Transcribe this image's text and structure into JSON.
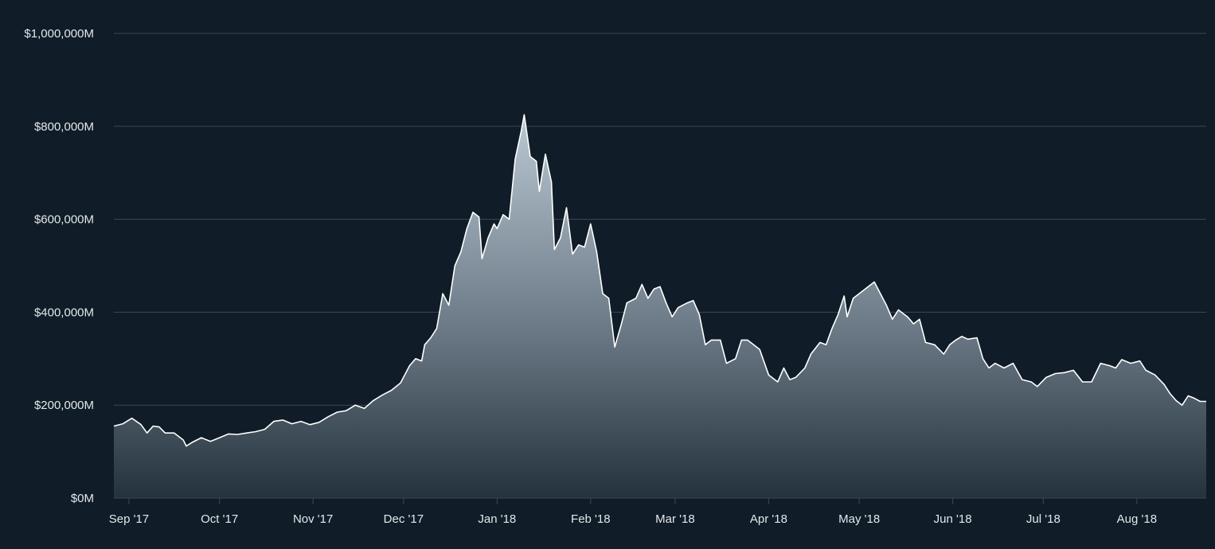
{
  "chart_data": {
    "type": "area",
    "title": "",
    "xlabel": "",
    "ylabel": "",
    "ylim": [
      0,
      1000000
    ],
    "xlim": [
      "2017-08-27",
      "2018-08-24"
    ],
    "grid": true,
    "legend": "none",
    "x_ticks": [
      {
        "date": "2017-09-01",
        "label": "Sep '17"
      },
      {
        "date": "2017-10-01",
        "label": "Oct '17"
      },
      {
        "date": "2017-11-01",
        "label": "Nov '17"
      },
      {
        "date": "2017-12-01",
        "label": "Dec '17"
      },
      {
        "date": "2018-01-01",
        "label": "Jan '18"
      },
      {
        "date": "2018-02-01",
        "label": "Feb '18"
      },
      {
        "date": "2018-03-01",
        "label": "Mar '18"
      },
      {
        "date": "2018-04-01",
        "label": "Apr '18"
      },
      {
        "date": "2018-05-01",
        "label": "May '18"
      },
      {
        "date": "2018-06-01",
        "label": "Jun '18"
      },
      {
        "date": "2018-07-01",
        "label": "Jul '18"
      },
      {
        "date": "2018-08-01",
        "label": "Aug '18"
      }
    ],
    "y_ticks": [
      {
        "value": 0,
        "label": "$0M"
      },
      {
        "value": 200000,
        "label": "$200,000M"
      },
      {
        "value": 400000,
        "label": "$400,000M"
      },
      {
        "value": 600000,
        "label": "$600,000M"
      },
      {
        "value": 800000,
        "label": "$800,000M"
      },
      {
        "value": 1000000,
        "label": "$1,000,000M"
      }
    ],
    "series": [
      {
        "values": [
          [
            "2017-08-27",
            155000
          ],
          [
            "2017-08-30",
            160000
          ],
          [
            "2017-09-02",
            172000
          ],
          [
            "2017-09-05",
            158000
          ],
          [
            "2017-09-07",
            140000
          ],
          [
            "2017-09-09",
            155000
          ],
          [
            "2017-09-11",
            153000
          ],
          [
            "2017-09-13",
            140000
          ],
          [
            "2017-09-16",
            140000
          ],
          [
            "2017-09-19",
            125000
          ],
          [
            "2017-09-20",
            112000
          ],
          [
            "2017-09-22",
            120000
          ],
          [
            "2017-09-25",
            130000
          ],
          [
            "2017-09-28",
            122000
          ],
          [
            "2017-10-01",
            130000
          ],
          [
            "2017-10-04",
            138000
          ],
          [
            "2017-10-07",
            137000
          ],
          [
            "2017-10-10",
            140000
          ],
          [
            "2017-10-13",
            143000
          ],
          [
            "2017-10-16",
            148000
          ],
          [
            "2017-10-19",
            165000
          ],
          [
            "2017-10-22",
            168000
          ],
          [
            "2017-10-25",
            160000
          ],
          [
            "2017-10-28",
            165000
          ],
          [
            "2017-10-31",
            158000
          ],
          [
            "2017-11-03",
            163000
          ],
          [
            "2017-11-06",
            175000
          ],
          [
            "2017-11-09",
            185000
          ],
          [
            "2017-11-12",
            188000
          ],
          [
            "2017-11-15",
            200000
          ],
          [
            "2017-11-18",
            193000
          ],
          [
            "2017-11-21",
            210000
          ],
          [
            "2017-11-24",
            222000
          ],
          [
            "2017-11-27",
            232000
          ],
          [
            "2017-11-30",
            248000
          ],
          [
            "2017-12-03",
            285000
          ],
          [
            "2017-12-05",
            300000
          ],
          [
            "2017-12-07",
            295000
          ],
          [
            "2017-12-08",
            330000
          ],
          [
            "2017-12-10",
            345000
          ],
          [
            "2017-12-12",
            365000
          ],
          [
            "2017-12-14",
            440000
          ],
          [
            "2017-12-16",
            415000
          ],
          [
            "2017-12-18",
            500000
          ],
          [
            "2017-12-20",
            530000
          ],
          [
            "2017-12-22",
            580000
          ],
          [
            "2017-12-24",
            615000
          ],
          [
            "2017-12-26",
            605000
          ],
          [
            "2017-12-27",
            515000
          ],
          [
            "2017-12-29",
            560000
          ],
          [
            "2017-12-31",
            590000
          ],
          [
            "2018-01-01",
            580000
          ],
          [
            "2018-01-03",
            610000
          ],
          [
            "2018-01-05",
            600000
          ],
          [
            "2018-01-07",
            730000
          ],
          [
            "2018-01-09",
            790000
          ],
          [
            "2018-01-10",
            825000
          ],
          [
            "2018-01-12",
            735000
          ],
          [
            "2018-01-14",
            725000
          ],
          [
            "2018-01-15",
            660000
          ],
          [
            "2018-01-17",
            740000
          ],
          [
            "2018-01-19",
            680000
          ],
          [
            "2018-01-20",
            535000
          ],
          [
            "2018-01-22",
            560000
          ],
          [
            "2018-01-24",
            625000
          ],
          [
            "2018-01-26",
            525000
          ],
          [
            "2018-01-28",
            545000
          ],
          [
            "2018-01-30",
            540000
          ],
          [
            "2018-02-01",
            590000
          ],
          [
            "2018-02-03",
            530000
          ],
          [
            "2018-02-05",
            440000
          ],
          [
            "2018-02-07",
            430000
          ],
          [
            "2018-02-09",
            325000
          ],
          [
            "2018-02-11",
            370000
          ],
          [
            "2018-02-13",
            420000
          ],
          [
            "2018-02-16",
            430000
          ],
          [
            "2018-02-18",
            460000
          ],
          [
            "2018-02-20",
            430000
          ],
          [
            "2018-02-22",
            450000
          ],
          [
            "2018-02-24",
            455000
          ],
          [
            "2018-02-26",
            420000
          ],
          [
            "2018-02-28",
            390000
          ],
          [
            "2018-03-02",
            410000
          ],
          [
            "2018-03-05",
            420000
          ],
          [
            "2018-03-07",
            425000
          ],
          [
            "2018-03-09",
            395000
          ],
          [
            "2018-03-11",
            330000
          ],
          [
            "2018-03-13",
            340000
          ],
          [
            "2018-03-16",
            340000
          ],
          [
            "2018-03-18",
            290000
          ],
          [
            "2018-03-21",
            300000
          ],
          [
            "2018-03-23",
            340000
          ],
          [
            "2018-03-25",
            340000
          ],
          [
            "2018-03-27",
            330000
          ],
          [
            "2018-03-29",
            320000
          ],
          [
            "2018-04-01",
            265000
          ],
          [
            "2018-04-04",
            250000
          ],
          [
            "2018-04-06",
            280000
          ],
          [
            "2018-04-08",
            255000
          ],
          [
            "2018-04-10",
            260000
          ],
          [
            "2018-04-13",
            280000
          ],
          [
            "2018-04-15",
            310000
          ],
          [
            "2018-04-18",
            335000
          ],
          [
            "2018-04-20",
            330000
          ],
          [
            "2018-04-22",
            365000
          ],
          [
            "2018-04-24",
            395000
          ],
          [
            "2018-04-26",
            435000
          ],
          [
            "2018-04-27",
            390000
          ],
          [
            "2018-04-29",
            430000
          ],
          [
            "2018-05-02",
            445000
          ],
          [
            "2018-05-04",
            455000
          ],
          [
            "2018-05-06",
            465000
          ],
          [
            "2018-05-08",
            440000
          ],
          [
            "2018-05-10",
            415000
          ],
          [
            "2018-05-12",
            385000
          ],
          [
            "2018-05-14",
            405000
          ],
          [
            "2018-05-17",
            390000
          ],
          [
            "2018-05-19",
            375000
          ],
          [
            "2018-05-21",
            385000
          ],
          [
            "2018-05-23",
            335000
          ],
          [
            "2018-05-26",
            330000
          ],
          [
            "2018-05-29",
            310000
          ],
          [
            "2018-05-31",
            330000
          ],
          [
            "2018-06-02",
            340000
          ],
          [
            "2018-06-04",
            348000
          ],
          [
            "2018-06-06",
            342000
          ],
          [
            "2018-06-09",
            345000
          ],
          [
            "2018-06-11",
            300000
          ],
          [
            "2018-06-13",
            280000
          ],
          [
            "2018-06-15",
            290000
          ],
          [
            "2018-06-18",
            280000
          ],
          [
            "2018-06-21",
            290000
          ],
          [
            "2018-06-24",
            255000
          ],
          [
            "2018-06-27",
            250000
          ],
          [
            "2018-06-29",
            240000
          ],
          [
            "2018-07-02",
            260000
          ],
          [
            "2018-07-05",
            268000
          ],
          [
            "2018-07-08",
            270000
          ],
          [
            "2018-07-11",
            275000
          ],
          [
            "2018-07-14",
            250000
          ],
          [
            "2018-07-17",
            250000
          ],
          [
            "2018-07-20",
            290000
          ],
          [
            "2018-07-23",
            285000
          ],
          [
            "2018-07-25",
            280000
          ],
          [
            "2018-07-27",
            298000
          ],
          [
            "2018-07-30",
            290000
          ],
          [
            "2018-08-02",
            295000
          ],
          [
            "2018-08-04",
            275000
          ],
          [
            "2018-08-07",
            265000
          ],
          [
            "2018-08-10",
            245000
          ],
          [
            "2018-08-12",
            225000
          ],
          [
            "2018-08-14",
            210000
          ],
          [
            "2018-08-16",
            200000
          ],
          [
            "2018-08-18",
            220000
          ],
          [
            "2018-08-20",
            215000
          ],
          [
            "2018-08-22",
            208000
          ],
          [
            "2018-08-24",
            208000
          ]
        ]
      }
    ]
  },
  "colors": {
    "background": "#101c27",
    "grid": "#3b4853",
    "line": "#ffffff",
    "area_top": "#b9c8d3",
    "area_bottom": "#24323d",
    "text": "#e3e8ec"
  }
}
